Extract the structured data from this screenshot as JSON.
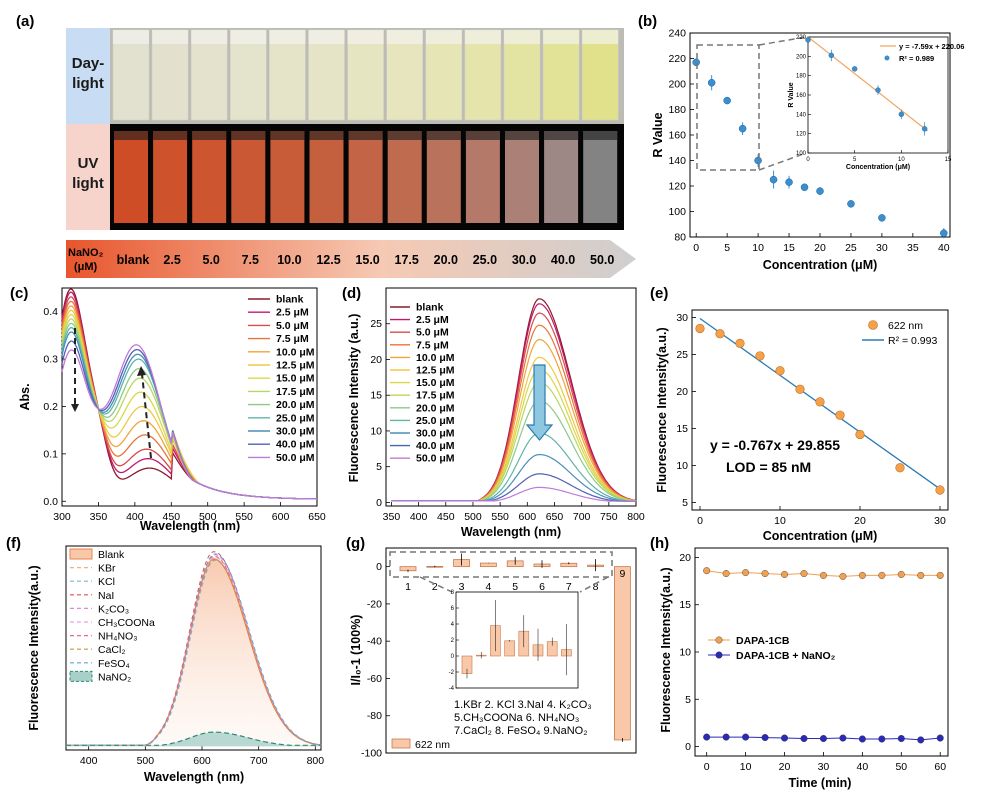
{
  "panel_labels": {
    "a": "(a)",
    "b": "(b)",
    "c": "(c)",
    "d": "(d)",
    "e": "(e)",
    "f": "(f)",
    "g": "(g)",
    "h": "(h)"
  },
  "photo": {
    "daylight_label_1": "Day-",
    "daylight_label_2": "light",
    "uv_label_1": "UV",
    "uv_label_2": "light",
    "analyte_label_1": "NaNO₂",
    "analyte_label_2": "(μM)",
    "concentrations": [
      "blank",
      "2.5",
      "5.0",
      "7.5",
      "10.0",
      "12.5",
      "15.0",
      "17.5",
      "20.0",
      "25.0",
      "30.0",
      "40.0",
      "50.0"
    ],
    "daylight_colors": [
      "#e2e0cf",
      "#e3e1cd",
      "#e4e2cc",
      "#e4e3cb",
      "#e5e4c9",
      "#e6e4c6",
      "#e6e5c2",
      "#e6e5bd",
      "#e6e5b5",
      "#e5e4ab",
      "#e4e4a2",
      "#e2e396",
      "#e0e18a"
    ],
    "uv_colors": [
      "#e0542a",
      "#e05a30",
      "#de5c33",
      "#dc6038",
      "#d9643d",
      "#d66843",
      "#d26d4b",
      "#ce7457",
      "#c97c64",
      "#c38372",
      "#b98b81",
      "#aa9490",
      "#8e8e8e"
    ]
  },
  "chart_data": [
    {
      "id": "b",
      "type": "scatter",
      "xlabel": "Concentration (μM)",
      "ylabel": "R Value",
      "xlim": [
        -1,
        41
      ],
      "ylim": [
        80,
        240
      ],
      "xticks": [
        0,
        5,
        10,
        15,
        20,
        25,
        30,
        35,
        40
      ],
      "yticks": [
        80,
        100,
        120,
        140,
        160,
        180,
        200,
        220,
        240
      ],
      "x": [
        0,
        2.5,
        5,
        7.5,
        10,
        12.5,
        15,
        17.5,
        20,
        25,
        30,
        40
      ],
      "y": [
        217,
        201,
        187,
        165,
        140,
        125,
        123,
        119,
        116,
        106,
        95,
        83
      ],
      "err": [
        2,
        6,
        2,
        5,
        5,
        7,
        5,
        2,
        3,
        1,
        1,
        4
      ],
      "color": "#3a8fd0",
      "inset": {
        "xlabel": "Concentration (μM)",
        "ylabel": "R Value",
        "xlim": [
          0,
          15
        ],
        "ylim": [
          100,
          220
        ],
        "xticks": [
          0,
          5,
          10,
          15
        ],
        "yticks": [
          100,
          120,
          140,
          160,
          180,
          200,
          220
        ],
        "x": [
          0,
          2.5,
          5,
          7.5,
          10,
          12.5
        ],
        "y": [
          217,
          201,
          187,
          165,
          140,
          125
        ],
        "err": [
          2,
          6,
          2,
          5,
          5,
          7
        ],
        "fit_label": "y = -7.59x + 220.06",
        "r2_label": "R² = 0.989",
        "fit_slope": -7.59,
        "fit_intercept": 220.06,
        "fit_color": "#f2a35a"
      }
    },
    {
      "id": "c",
      "type": "line",
      "xlabel": "Wavelength (nm)",
      "ylabel": "Abs.",
      "xlim": [
        300,
        650
      ],
      "ylim": [
        -0.01,
        0.45
      ],
      "xticks": [
        300,
        350,
        400,
        450,
        500,
        550,
        600,
        650
      ],
      "yticks": [
        0.0,
        0.1,
        0.2,
        0.3,
        0.4
      ],
      "ytick_labels": [
        "0.0",
        "0.1",
        "0.2",
        "0.3",
        "0.4"
      ],
      "series_names": [
        "blank",
        "2.5 μM",
        "5.0 μM",
        "7.5 μM",
        "10.0 μM",
        "12.5 μM",
        "15.0 μM",
        "17.5 μM",
        "20.0 μM",
        "25.0 μM",
        "30.0 μM",
        "40.0 μM",
        "50.0 μM"
      ],
      "colors": [
        "#8b1a2b",
        "#c2186b",
        "#d94a4a",
        "#e8743a",
        "#f2a33a",
        "#f0c846",
        "#d9d84a",
        "#b8d860",
        "#8cc98a",
        "#5fb4a6",
        "#4a8fb8",
        "#5060b8",
        "#c07ad8"
      ],
      "peak1_heights": [
        0.447,
        0.44,
        0.43,
        0.42,
        0.41,
        0.4,
        0.39,
        0.38,
        0.37,
        0.36,
        0.35,
        0.33,
        0.31
      ],
      "peak2_heights": [
        0.07,
        0.09,
        0.11,
        0.14,
        0.17,
        0.2,
        0.23,
        0.26,
        0.28,
        0.3,
        0.31,
        0.32,
        0.33
      ],
      "peak2_positions": [
        420,
        418,
        416,
        414,
        412,
        410,
        408,
        407,
        406,
        405,
        404,
        403,
        402
      ]
    },
    {
      "id": "d",
      "type": "line",
      "xlabel": "Wavelength (nm)",
      "ylabel": "Fluorescence Intensity (a.u.)",
      "xlim": [
        340,
        800
      ],
      "ylim": [
        -0.5,
        30
      ],
      "xticks": [
        350,
        400,
        450,
        500,
        550,
        600,
        650,
        700,
        750,
        800
      ],
      "yticks": [
        0,
        5,
        10,
        15,
        20,
        25
      ],
      "series_names": [
        "blank",
        "2.5 μM",
        "5.0 μM",
        "7.5 μM",
        "10.0 μM",
        "12.5 μM",
        "15.0 μM",
        "17.5 μM",
        "20.0 μM",
        "25.0 μM",
        "30.0 μM",
        "40.0 μM",
        "50.0 μM"
      ],
      "colors": [
        "#8b1a2b",
        "#c2186b",
        "#d94a4a",
        "#e8743a",
        "#f2a33a",
        "#f0c846",
        "#d9d84a",
        "#b8d860",
        "#8cc98a",
        "#5fb4a6",
        "#4a8fb8",
        "#5060b8",
        "#c07ad8"
      ],
      "peaks": [
        28.5,
        27.8,
        26.5,
        24.8,
        22.8,
        20.3,
        18.6,
        16.8,
        14.2,
        9.7,
        6.7,
        4.0,
        2.1
      ],
      "peak_wavelength": 622
    },
    {
      "id": "e",
      "type": "scatter",
      "xlabel": "Concentration (μM)",
      "ylabel": "Fluorescence Intensity(a.u.)",
      "xlim": [
        -1,
        31
      ],
      "ylim": [
        4,
        31
      ],
      "xticks": [
        0,
        10,
        20,
        30
      ],
      "yticks": [
        5,
        10,
        15,
        20,
        25,
        30
      ],
      "x": [
        0,
        2.5,
        5,
        7.5,
        10,
        12.5,
        15,
        17.5,
        20,
        25,
        30
      ],
      "y": [
        28.5,
        27.8,
        26.5,
        24.8,
        22.8,
        20.3,
        18.6,
        16.8,
        14.2,
        9.7,
        6.7
      ],
      "legend_points": "622 nm",
      "legend_fit": "R² = 0.993",
      "fit_label": "y = -0.767x + 29.855",
      "lod_label": "LOD = 85 nM",
      "fit_slope": -0.767,
      "fit_intercept": 29.855,
      "point_color": "#f5a04a",
      "fit_color": "#2a7ab8"
    },
    {
      "id": "f",
      "type": "area",
      "xlabel": "Wavelength (nm)",
      "ylabel": "Fluorescence Intensity(a.u.)",
      "xlim": [
        360,
        810
      ],
      "ylim": [
        -0.5,
        28
      ],
      "xticks": [
        400,
        500,
        600,
        700,
        800
      ],
      "series_names": [
        "Blank",
        "KBr",
        "KCl",
        "NaI",
        "K₂CO₃",
        "CH₃COONa",
        "NH₄NO₃",
        "CaCl₂",
        "FeSO₄",
        "NaNO₂"
      ],
      "colors": [
        "#e8844a",
        "#f0b080",
        "#7fb6c9",
        "#e05050",
        "#d58fd0",
        "#e8a0e8",
        "#e06aa0",
        "#d09040",
        "#60a8d0",
        "#2a8a7a"
      ],
      "peaks": [
        26.2,
        26.5,
        26.0,
        27.2,
        26.8,
        26.4,
        26.6,
        26.1,
        26.9,
        2.0
      ]
    },
    {
      "id": "g",
      "type": "bar",
      "ylabel": "I/I₀-1 (100%)",
      "ylim": [
        -100,
        10
      ],
      "yticks": [
        -100,
        -80,
        -60,
        -40,
        -20,
        0
      ],
      "categories": [
        "1",
        "2",
        "3",
        "4",
        "5",
        "6",
        "7",
        "8",
        "9"
      ],
      "values": [
        -2.2,
        0.1,
        3.8,
        1.9,
        3.1,
        1.4,
        1.8,
        0.8,
        -93.0
      ],
      "errors": [
        0.6,
        0.4,
        3.2,
        0.1,
        2.0,
        2.0,
        0.5,
        3.2,
        1.0
      ],
      "legend": "622 nm",
      "bar_color": "#f8c8a8",
      "bar_edge": "#c87a50",
      "key_lines": [
        "1.KBr  2. KCl  3.NaI  4. K₂CO₃",
        "5.CH₃COONa  6. NH₄NO₃",
        "7.CaCl₂  8. FeSO₄  9.NaNO₂"
      ],
      "inset": {
        "ylim": [
          -4,
          8
        ],
        "yticks": [
          -4,
          -2,
          0,
          2,
          4,
          6,
          8
        ],
        "xticks": [
          "1",
          "2",
          "3",
          "4",
          "5",
          "6",
          "7",
          "8"
        ]
      }
    },
    {
      "id": "h",
      "type": "line",
      "xlabel": "Time (min)",
      "ylabel": "Fluorescence Intensity(a.u.)",
      "xlim": [
        -3,
        62
      ],
      "ylim": [
        -1,
        21
      ],
      "xticks": [
        0,
        10,
        20,
        30,
        40,
        50,
        60
      ],
      "yticks": [
        0,
        5,
        10,
        15,
        20
      ],
      "x": [
        0,
        5,
        10,
        15,
        20,
        25,
        30,
        35,
        40,
        45,
        50,
        55,
        60
      ],
      "series": [
        {
          "name": "DAPA-1CB",
          "color": "#f0a050",
          "values": [
            18.6,
            18.3,
            18.4,
            18.3,
            18.2,
            18.3,
            18.1,
            18.0,
            18.1,
            18.1,
            18.2,
            18.1,
            18.1
          ]
        },
        {
          "name": "DAPA-1CB + NaNO₂",
          "color": "#2a2ab8",
          "values": [
            1.0,
            1.0,
            1.0,
            0.95,
            0.9,
            0.85,
            0.85,
            0.9,
            0.8,
            0.8,
            0.85,
            0.7,
            0.9
          ]
        }
      ]
    }
  ]
}
